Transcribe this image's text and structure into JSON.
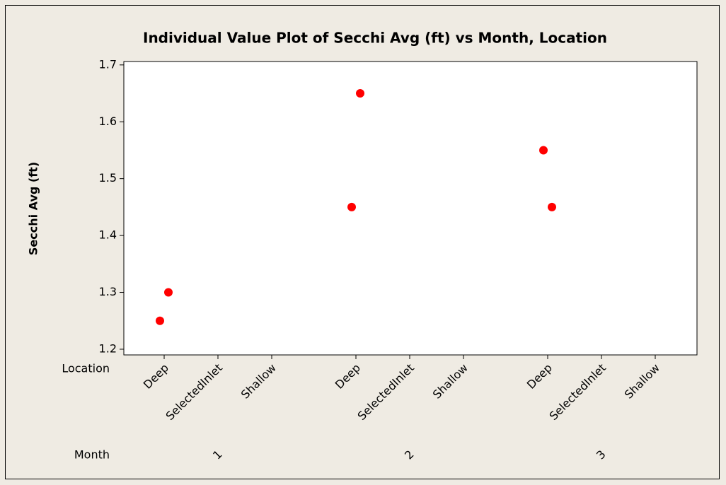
{
  "chart_data": {
    "type": "scatter",
    "title": "Individual Value Plot of Secchi Avg (ft) vs Month, Location",
    "y_label": "Secchi Avg (ft)",
    "x_level_names": [
      "Location",
      "Month"
    ],
    "months": [
      {
        "label": "1",
        "locations": [
          {
            "name": "Deep",
            "values": [
              1.25,
              1.3
            ]
          },
          {
            "name": "SelectedInlet",
            "values": []
          },
          {
            "name": "Shallow",
            "values": []
          }
        ]
      },
      {
        "label": "2",
        "locations": [
          {
            "name": "Deep",
            "values": [
              1.45,
              1.65
            ]
          },
          {
            "name": "SelectedInlet",
            "values": []
          },
          {
            "name": "Shallow",
            "values": []
          }
        ]
      },
      {
        "label": "3",
        "locations": [
          {
            "name": "Deep",
            "values": [
              1.55,
              1.45
            ]
          },
          {
            "name": "SelectedInlet",
            "values": []
          },
          {
            "name": "Shallow",
            "values": []
          }
        ]
      }
    ],
    "color": "#ff0000",
    "ylim": [
      1.19,
      1.706
    ],
    "yticks": [
      1.2,
      1.3,
      1.4,
      1.5,
      1.6,
      1.7
    ],
    "grid": false
  }
}
